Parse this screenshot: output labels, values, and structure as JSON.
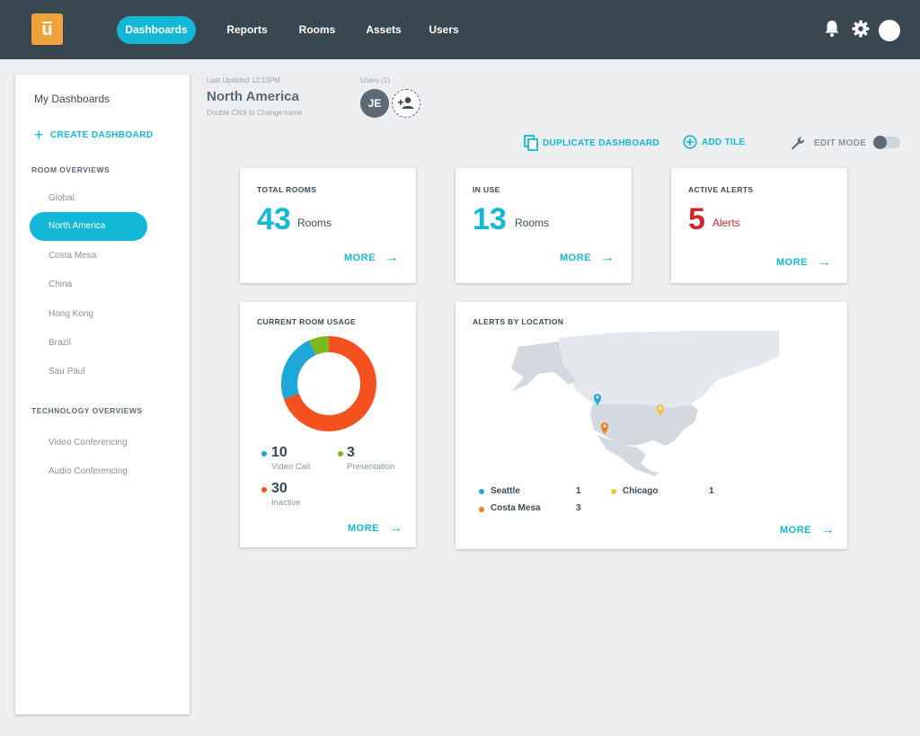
{
  "logo": {
    "glyph": "u"
  },
  "nav": {
    "items": [
      {
        "label": "Dashboards",
        "active": true
      },
      {
        "label": "Reports"
      },
      {
        "label": "Rooms"
      },
      {
        "label": "Assets"
      },
      {
        "label": "Users"
      }
    ],
    "icons": [
      "bell-icon",
      "gear-icon",
      "avatar"
    ]
  },
  "sidebar": {
    "title": "My Dashboards",
    "create_label": "CREATE DASHBOARD",
    "room_section": "ROOM OVERVIEWS",
    "rooms": [
      "Global",
      "North America",
      "Costa Mesa",
      "China",
      "Hong Kong",
      "Brazil",
      "Sau Paul"
    ],
    "active_room": "North America",
    "tech_section": "TECHNOLOGY OVERVIEWS",
    "tech": [
      "Video Conferencing",
      "Audio Conferencing"
    ]
  },
  "header": {
    "last_updated": "Last Updated 12:13PM",
    "name": "North America",
    "hint": "Double Click to Change name",
    "users_label": "Users (1)",
    "user_initials": "JE"
  },
  "toolbar": {
    "duplicate": "DUPLICATE DASHBOARD",
    "add_tile": "ADD TILE",
    "edit_mode": "EDIT MODE",
    "edit_mode_on": false
  },
  "tiles": {
    "total_rooms": {
      "title": "TOTAL ROOMS",
      "value": "43",
      "unit": "Rooms",
      "more": "MORE"
    },
    "in_use": {
      "title": "IN USE",
      "value": "13",
      "unit": "Rooms",
      "more": "MORE"
    },
    "active_alerts": {
      "title": "ACTIVE ALERTS",
      "value": "5",
      "unit": "Alerts",
      "more": "MORE"
    }
  },
  "usage": {
    "title": "CURRENT ROOM USAGE",
    "more": "MORE",
    "segments": [
      {
        "label": "Video Call",
        "value": "10",
        "color": "#1ea7d9"
      },
      {
        "label": "Presentation",
        "value": "3",
        "color": "#7ab81e"
      },
      {
        "label": "Inactive",
        "value": "30",
        "color": "#f4511e"
      }
    ]
  },
  "alerts_map": {
    "title": "ALERTS BY LOCATION",
    "more": "MORE",
    "locations": [
      {
        "name": "Seattle",
        "count": "1",
        "color": "#1ea7d9"
      },
      {
        "name": "Chicago",
        "count": "1",
        "color": "#f5c242"
      },
      {
        "name": "Costa Mesa",
        "count": "3",
        "color": "#f57c1e"
      }
    ]
  },
  "colors": {
    "accent": "#12b8d5",
    "alert": "#d0262d",
    "nav_bg": "#394750",
    "logo": "#f0a23c"
  }
}
